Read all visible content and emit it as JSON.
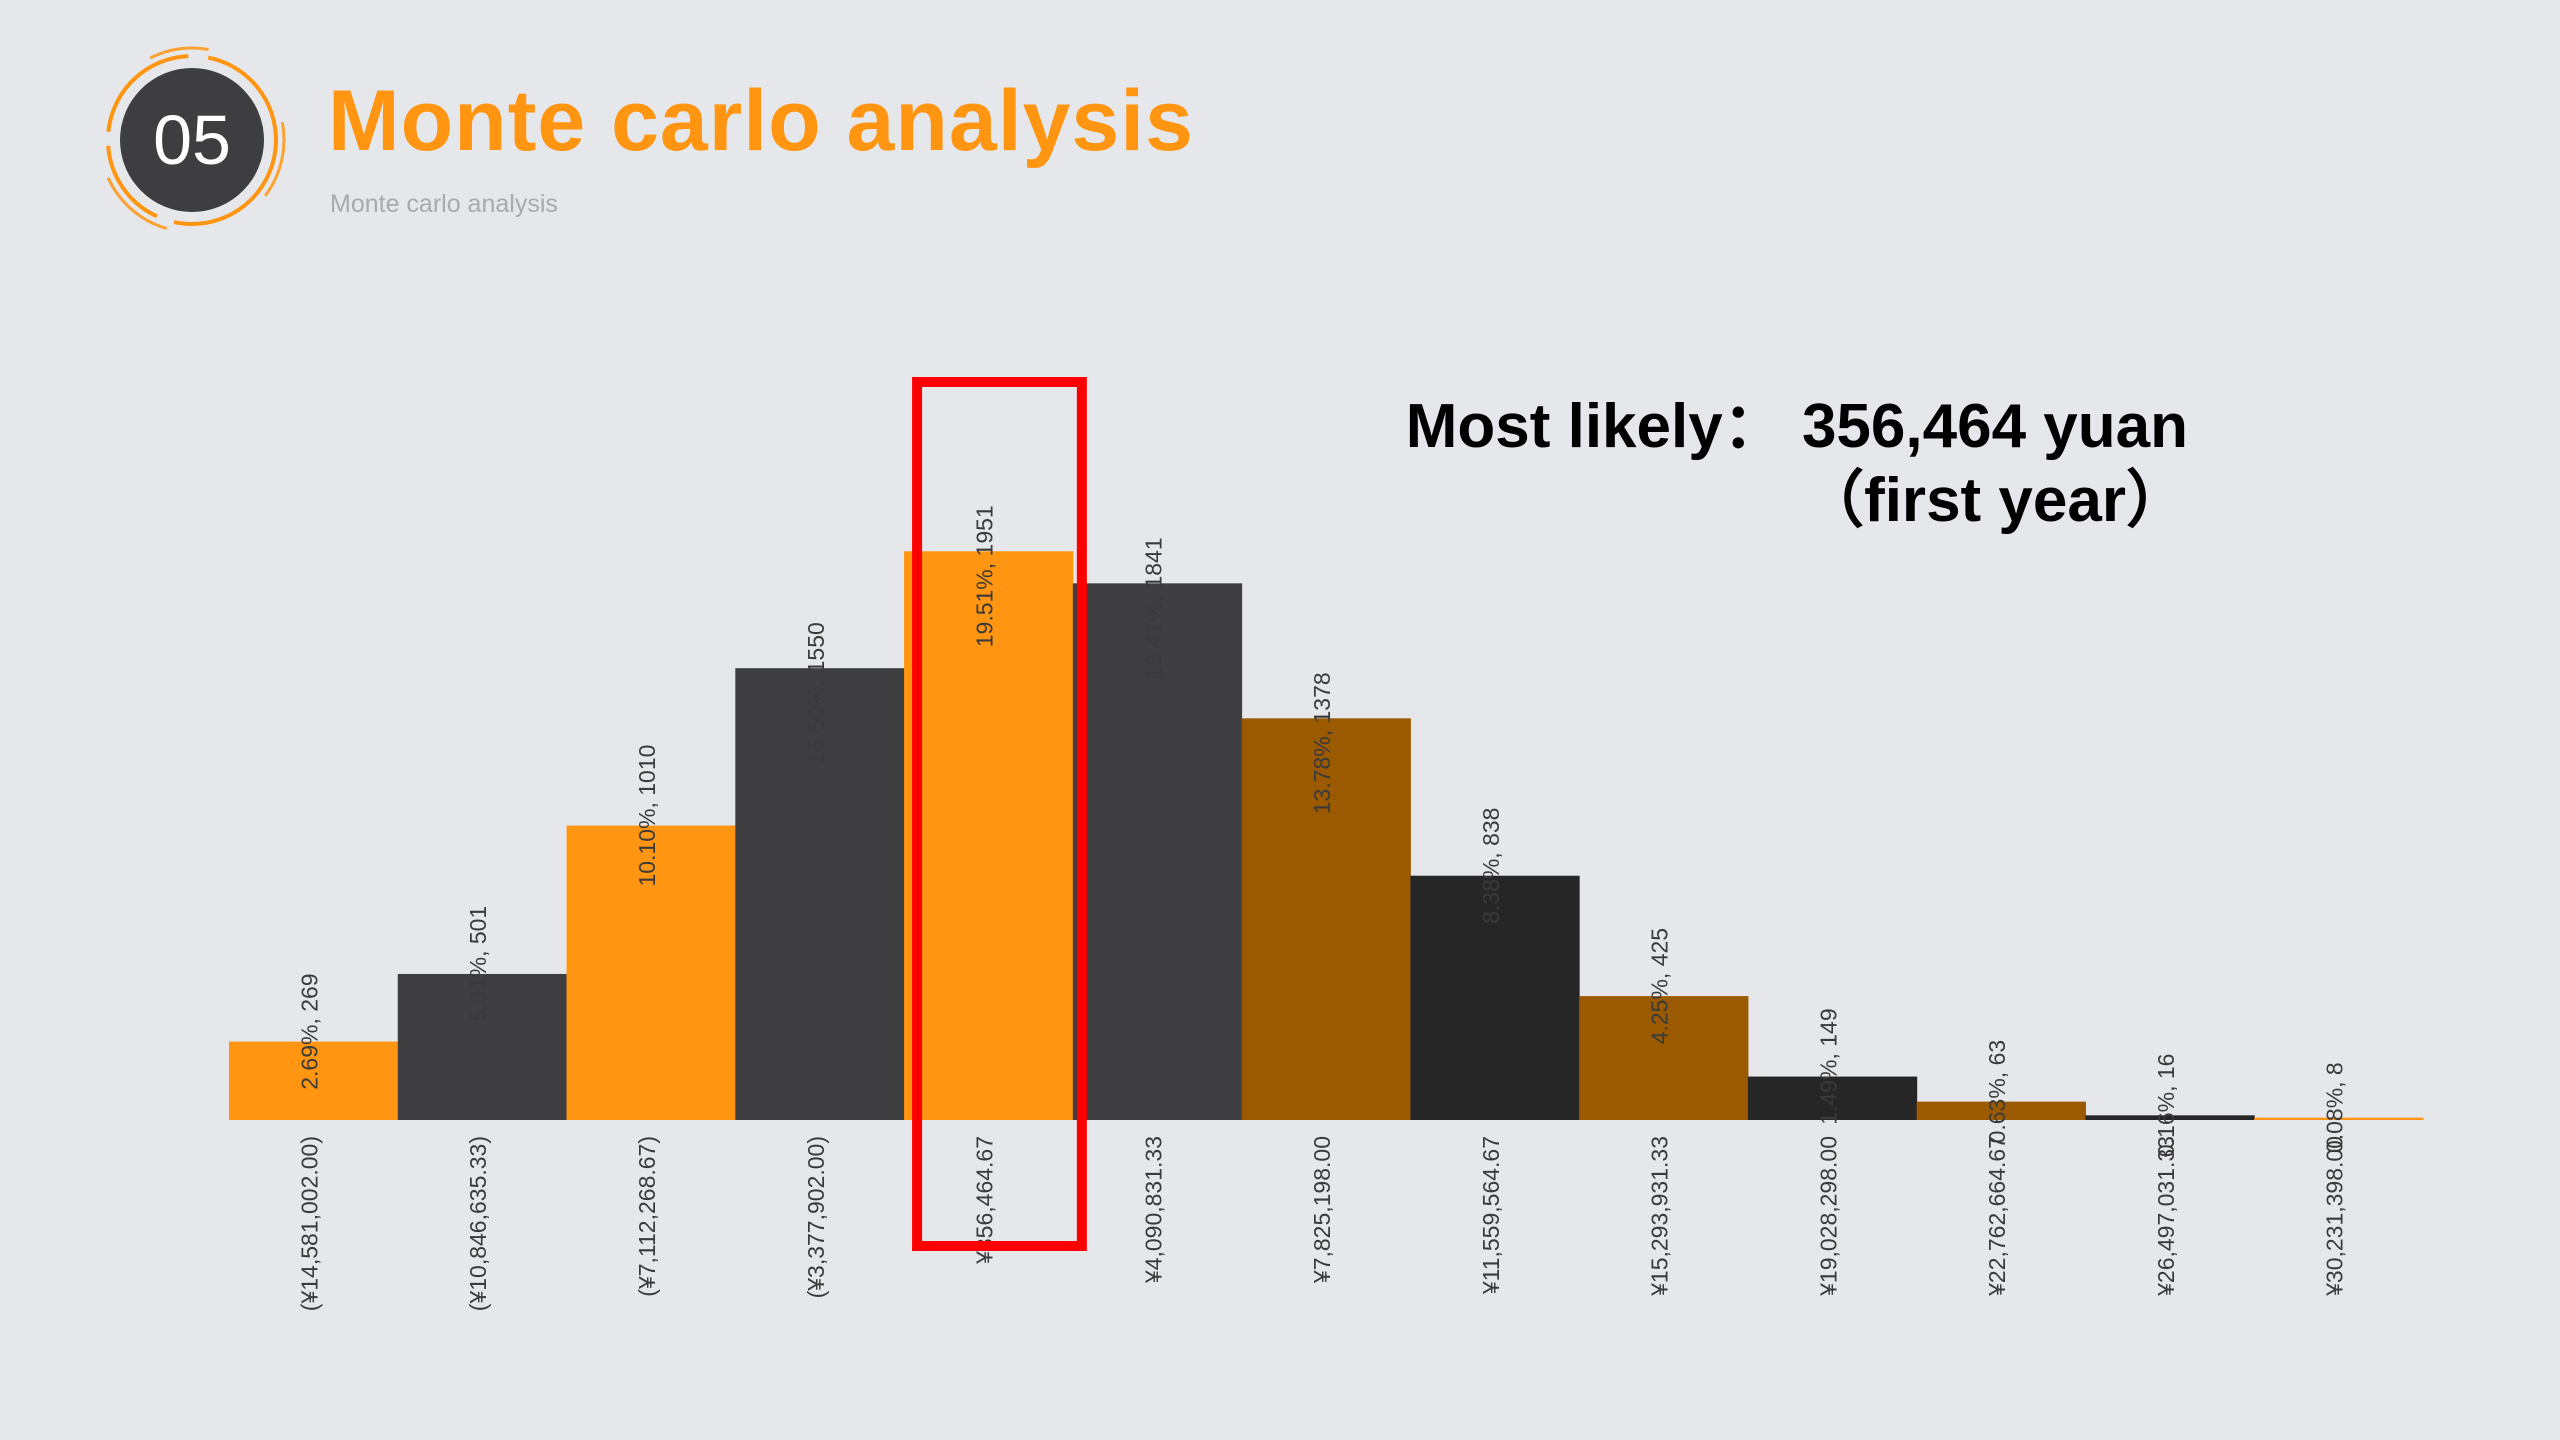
{
  "header": {
    "badge_number": "05",
    "title": "Monte carlo analysis",
    "subtitle": "Monte carlo analysis"
  },
  "annotation": {
    "line1": "Most likely：  356,464 yuan",
    "line2": "（first year）"
  },
  "colors": {
    "background": "#E6E7EA",
    "accent_orange": "#FF9511",
    "dark_gray": "#3E3E40",
    "brown": "#9B5A00",
    "near_black": "#262626",
    "highlight_red": "#FF0000"
  },
  "chart_data": {
    "type": "bar",
    "title": "",
    "xlabel": "",
    "ylabel": "",
    "ylim": [
      0,
      2000
    ],
    "grid": false,
    "legend": "none",
    "highlight_category_index": 4,
    "categories": [
      "(¥14,581,002.00)",
      "(¥10,846,635.33)",
      "(¥7,112,268.67)",
      "(¥3,377,902.00)",
      "¥356,464.67",
      "¥4,090,831.33",
      "¥7,825,198.00",
      "¥11,559,564.67",
      "¥15,293,931.33",
      "¥19,028,298.00",
      "¥22,762,664.67",
      "¥26,497,031.33",
      "¥30,231,398.00"
    ],
    "values": [
      269,
      501,
      1010,
      1550,
      1951,
      1841,
      1378,
      838,
      425,
      149,
      63,
      16,
      8
    ],
    "data_labels": [
      "2.69%, 269",
      "5.01%, 501",
      "10.10%, 1010",
      "15.50%, 1550",
      "19.51%, 1951",
      "18.41%, 1841",
      "13.78%, 1378",
      "8.38%, 838",
      "4.25%, 425",
      "1.49%, 149",
      "0.63%, 63",
      "0.16%, 16",
      "0.08%, 8"
    ],
    "bar_colors": [
      "#FF9511",
      "#3E3E40",
      "#FF9511",
      "#3E3E40",
      "#FF9511",
      "#3E3E40",
      "#9B5A00",
      "#262626",
      "#9B5A00",
      "#262626",
      "#9B5A00",
      "#262626",
      "#FF9511"
    ]
  }
}
